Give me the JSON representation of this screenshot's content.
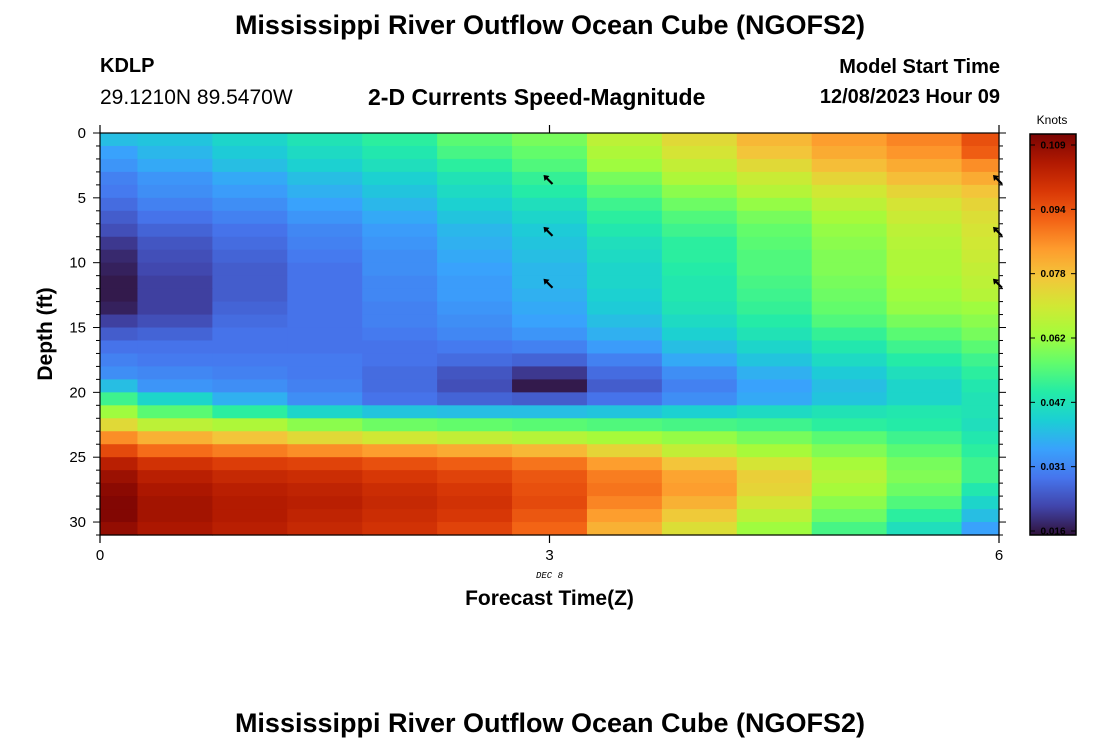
{
  "header": {
    "title": "Mississippi River Outflow Ocean Cube (NGOFS2)",
    "station_id": "KDLP",
    "station_coords": "29.1210N  89.5470W",
    "subtitle": "2-D Currents Speed-Magnitude",
    "start_label": "Model Start Time",
    "start_value": "12/08/2023 Hour 09"
  },
  "footer": {
    "title": "Mississippi River Outflow Ocean Cube (NGOFS2)"
  },
  "chart_data": {
    "type": "heatmap",
    "title": "2-D Currents Speed-Magnitude",
    "xlabel": "Forecast Time(Z)",
    "ylabel": "Depth (ft)",
    "x_date_label": "DEC 8",
    "xlim": [
      0,
      6
    ],
    "ylim": [
      0,
      31
    ],
    "y_inverted": true,
    "x_ticks": [
      0,
      3,
      6
    ],
    "y_ticks": [
      0,
      5,
      10,
      15,
      20,
      25,
      30
    ],
    "colorbar": {
      "label": "Knots",
      "min": 0.016,
      "max": 0.109,
      "ticks": [
        "0.109",
        "0.094",
        "0.078",
        "0.062",
        "0.047",
        "0.031",
        "0.016"
      ]
    },
    "colormap": [
      "#30123b",
      "#4145ab",
      "#4675ed",
      "#39a2fc",
      "#1bcfd4",
      "#24eca6",
      "#61fc6c",
      "#a4fc3b",
      "#d1e834",
      "#f3c63a",
      "#fe9b2d",
      "#f36315",
      "#d93806",
      "#b11901",
      "#7a0403"
    ],
    "x_columns": [
      0,
      0.25,
      0.75,
      1.25,
      1.75,
      2.25,
      2.75,
      3.25,
      3.75,
      4.25,
      4.75,
      5.25,
      5.75
    ],
    "column_edges": [
      0,
      0.25,
      0.75,
      1.25,
      1.75,
      2.25,
      2.75,
      3.25,
      3.75,
      4.25,
      4.75,
      5.25,
      5.75,
      6
    ],
    "depths": [
      0.5,
      1.5,
      2.5,
      3.5,
      4.5,
      5.5,
      6.5,
      7.5,
      8.5,
      9.5,
      10.5,
      11.5,
      12.5,
      13.5,
      14.5,
      15.5,
      16.5,
      17.5,
      18.5,
      19.5,
      20.5,
      21.5,
      22.5,
      23.5,
      24.5,
      25.5,
      26.5,
      27.5,
      28.5,
      29.5,
      30.5
    ],
    "values": [
      [
        0.04,
        0.041,
        0.044,
        0.047,
        0.05,
        0.055,
        0.058,
        0.066,
        0.072,
        0.078,
        0.082,
        0.085,
        0.092
      ],
      [
        0.036,
        0.039,
        0.042,
        0.045,
        0.048,
        0.053,
        0.056,
        0.064,
        0.07,
        0.076,
        0.08,
        0.083,
        0.09
      ],
      [
        0.034,
        0.037,
        0.04,
        0.043,
        0.046,
        0.05,
        0.054,
        0.062,
        0.067,
        0.072,
        0.077,
        0.08,
        0.084
      ],
      [
        0.031,
        0.034,
        0.037,
        0.04,
        0.043,
        0.047,
        0.051,
        0.058,
        0.064,
        0.068,
        0.073,
        0.077,
        0.08
      ],
      [
        0.03,
        0.033,
        0.035,
        0.038,
        0.041,
        0.045,
        0.049,
        0.055,
        0.06,
        0.065,
        0.069,
        0.073,
        0.076
      ],
      [
        0.028,
        0.031,
        0.033,
        0.036,
        0.039,
        0.043,
        0.046,
        0.052,
        0.057,
        0.061,
        0.066,
        0.07,
        0.073
      ],
      [
        0.026,
        0.029,
        0.031,
        0.034,
        0.037,
        0.041,
        0.044,
        0.05,
        0.054,
        0.058,
        0.063,
        0.068,
        0.071
      ],
      [
        0.024,
        0.027,
        0.029,
        0.032,
        0.035,
        0.039,
        0.042,
        0.048,
        0.052,
        0.056,
        0.061,
        0.066,
        0.07
      ],
      [
        0.021,
        0.025,
        0.028,
        0.031,
        0.034,
        0.038,
        0.041,
        0.046,
        0.05,
        0.055,
        0.06,
        0.065,
        0.069
      ],
      [
        0.019,
        0.024,
        0.027,
        0.03,
        0.033,
        0.037,
        0.04,
        0.045,
        0.05,
        0.054,
        0.059,
        0.064,
        0.068
      ],
      [
        0.018,
        0.023,
        0.026,
        0.029,
        0.033,
        0.036,
        0.039,
        0.044,
        0.049,
        0.054,
        0.059,
        0.064,
        0.067
      ],
      [
        0.017,
        0.022,
        0.026,
        0.029,
        0.032,
        0.035,
        0.039,
        0.044,
        0.048,
        0.053,
        0.058,
        0.063,
        0.066
      ],
      [
        0.017,
        0.022,
        0.026,
        0.029,
        0.032,
        0.035,
        0.038,
        0.043,
        0.048,
        0.052,
        0.057,
        0.062,
        0.065
      ],
      [
        0.018,
        0.022,
        0.027,
        0.029,
        0.031,
        0.034,
        0.037,
        0.042,
        0.047,
        0.051,
        0.056,
        0.061,
        0.062
      ],
      [
        0.022,
        0.024,
        0.028,
        0.029,
        0.031,
        0.033,
        0.036,
        0.04,
        0.045,
        0.049,
        0.054,
        0.058,
        0.06
      ],
      [
        0.026,
        0.027,
        0.029,
        0.029,
        0.03,
        0.032,
        0.034,
        0.038,
        0.043,
        0.047,
        0.051,
        0.055,
        0.058
      ],
      [
        0.029,
        0.029,
        0.029,
        0.029,
        0.029,
        0.03,
        0.031,
        0.035,
        0.04,
        0.044,
        0.048,
        0.052,
        0.055
      ],
      [
        0.031,
        0.03,
        0.03,
        0.03,
        0.029,
        0.028,
        0.027,
        0.031,
        0.037,
        0.041,
        0.045,
        0.049,
        0.052
      ],
      [
        0.033,
        0.032,
        0.031,
        0.03,
        0.028,
        0.025,
        0.021,
        0.028,
        0.033,
        0.038,
        0.042,
        0.046,
        0.05
      ],
      [
        0.04,
        0.034,
        0.033,
        0.031,
        0.028,
        0.024,
        0.017,
        0.026,
        0.031,
        0.036,
        0.04,
        0.044,
        0.048
      ],
      [
        0.052,
        0.044,
        0.038,
        0.033,
        0.029,
        0.027,
        0.026,
        0.029,
        0.033,
        0.037,
        0.041,
        0.044,
        0.047
      ],
      [
        0.062,
        0.055,
        0.05,
        0.044,
        0.041,
        0.04,
        0.04,
        0.041,
        0.043,
        0.045,
        0.047,
        0.048,
        0.047
      ],
      [
        0.072,
        0.066,
        0.064,
        0.06,
        0.057,
        0.056,
        0.055,
        0.054,
        0.053,
        0.052,
        0.05,
        0.049,
        0.046
      ],
      [
        0.084,
        0.079,
        0.076,
        0.072,
        0.069,
        0.067,
        0.065,
        0.063,
        0.061,
        0.058,
        0.055,
        0.052,
        0.048
      ],
      [
        0.093,
        0.088,
        0.086,
        0.084,
        0.082,
        0.08,
        0.078,
        0.073,
        0.067,
        0.063,
        0.059,
        0.055,
        0.05
      ],
      [
        0.101,
        0.097,
        0.095,
        0.094,
        0.092,
        0.09,
        0.087,
        0.082,
        0.076,
        0.07,
        0.063,
        0.058,
        0.052
      ],
      [
        0.105,
        0.101,
        0.099,
        0.098,
        0.096,
        0.094,
        0.091,
        0.086,
        0.081,
        0.074,
        0.065,
        0.059,
        0.052
      ],
      [
        0.107,
        0.103,
        0.101,
        0.1,
        0.098,
        0.096,
        0.092,
        0.087,
        0.082,
        0.073,
        0.063,
        0.057,
        0.048
      ],
      [
        0.108,
        0.104,
        0.102,
        0.101,
        0.099,
        0.097,
        0.093,
        0.085,
        0.079,
        0.07,
        0.06,
        0.054,
        0.044
      ],
      [
        0.108,
        0.104,
        0.102,
        0.1,
        0.098,
        0.096,
        0.091,
        0.082,
        0.075,
        0.066,
        0.057,
        0.05,
        0.04
      ],
      [
        0.106,
        0.103,
        0.101,
        0.099,
        0.097,
        0.094,
        0.089,
        0.079,
        0.071,
        0.062,
        0.053,
        0.046,
        0.036
      ]
    ],
    "vectors": [
      {
        "x": 3,
        "depth": 3.7
      },
      {
        "x": 3,
        "depth": 7.7
      },
      {
        "x": 3,
        "depth": 11.7
      },
      {
        "x": 6,
        "depth": 3.7
      },
      {
        "x": 6,
        "depth": 7.7
      },
      {
        "x": 6,
        "depth": 11.7
      }
    ]
  }
}
